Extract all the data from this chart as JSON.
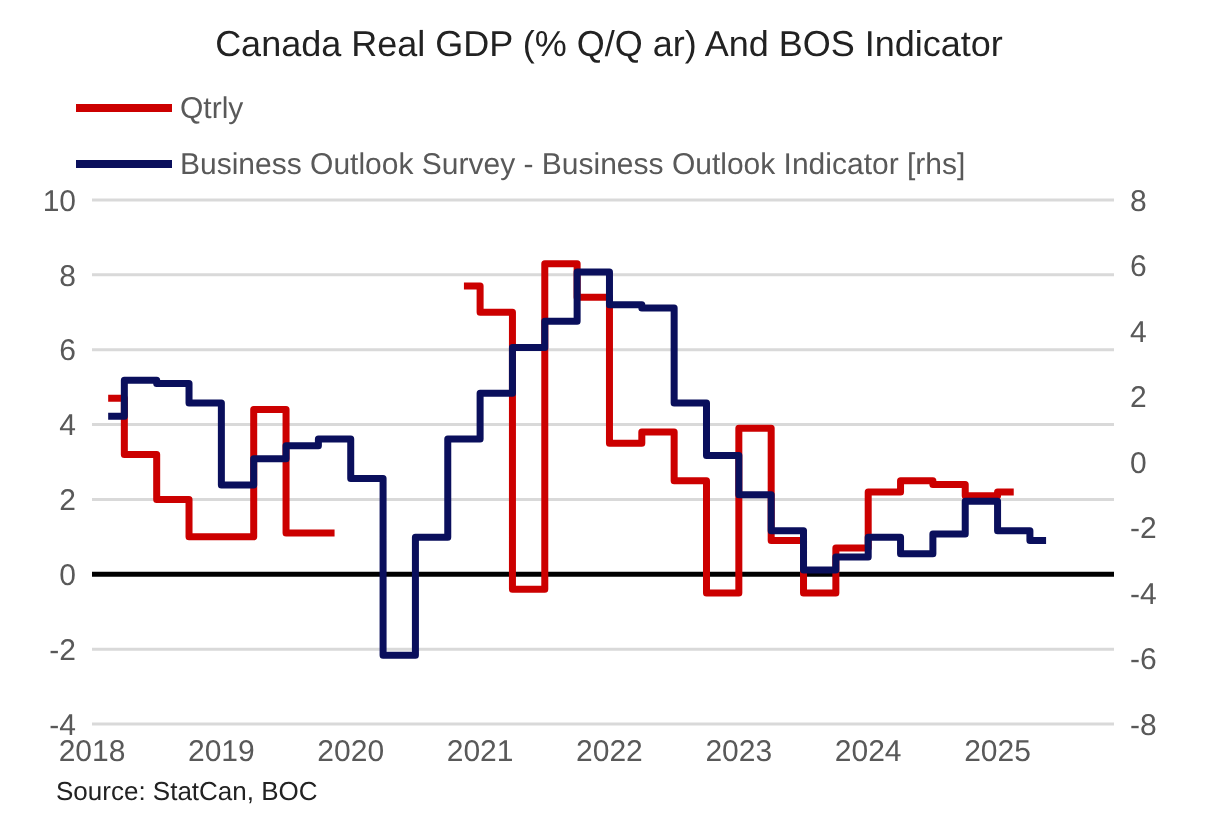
{
  "chart_data": {
    "type": "step",
    "title": "Canada Real GDP (% Q/Q ar) And BOS Indicator",
    "x": [
      2018.125,
      2018.375,
      2018.625,
      2018.875,
      2019.125,
      2019.375,
      2019.625,
      2019.875,
      2020.125,
      2020.375,
      2020.625,
      2020.875,
      2021.125,
      2021.375,
      2021.625,
      2021.875,
      2022.125,
      2022.375,
      2022.625,
      2022.875,
      2023.125,
      2023.375,
      2023.625,
      2023.875,
      2024.125,
      2024.375,
      2024.625,
      2024.875,
      2025.125,
      2025.375
    ],
    "series": [
      {
        "name": "Qtrly",
        "color": "#cc0000",
        "values": [
          4.7,
          3.2,
          2.0,
          1.0,
          1.0,
          4.4,
          1.1,
          1.1,
          null,
          null,
          null,
          7.7,
          7.0,
          -0.4,
          8.3,
          7.4,
          3.5,
          3.8,
          2.5,
          -0.5,
          3.9,
          0.9,
          -0.5,
          0.7,
          2.2,
          2.5,
          2.4,
          2.1,
          2.2,
          null
        ]
      },
      {
        "name": "Business Outlook Survey - Business Outlook Indicator [rhs]",
        "color": "#0a0f5c",
        "axis": "y2",
        "values": [
          1.4,
          2.5,
          2.4,
          1.8,
          -0.7,
          0.1,
          0.5,
          0.7,
          -0.5,
          -5.9,
          -2.3,
          0.7,
          2.1,
          3.5,
          4.3,
          5.8,
          4.8,
          4.7,
          1.8,
          0.2,
          -1.0,
          -2.1,
          -3.3,
          -2.9,
          -2.3,
          -2.8,
          -2.2,
          -1.2,
          -2.1,
          -2.4
        ]
      }
    ],
    "xlim": [
      2018,
      2025.9
    ],
    "xticks": [
      2018,
      2019,
      2020,
      2021,
      2022,
      2023,
      2024,
      2025
    ],
    "ylim": [
      -4,
      10
    ],
    "yticks": [
      -4,
      -2,
      0,
      2,
      4,
      6,
      8,
      10
    ],
    "y2lim": [
      -8,
      8
    ],
    "y2ticks": [
      -8,
      -6,
      -4,
      -2,
      0,
      2,
      4,
      6,
      8
    ],
    "ref_lines": [
      {
        "axis": "y",
        "value": 0,
        "color": "#000000"
      }
    ],
    "grid": "y",
    "legend": "top left",
    "line_style": "solid",
    "marker": "none",
    "annotations": [
      "Source: StatCan, BOC"
    ]
  }
}
